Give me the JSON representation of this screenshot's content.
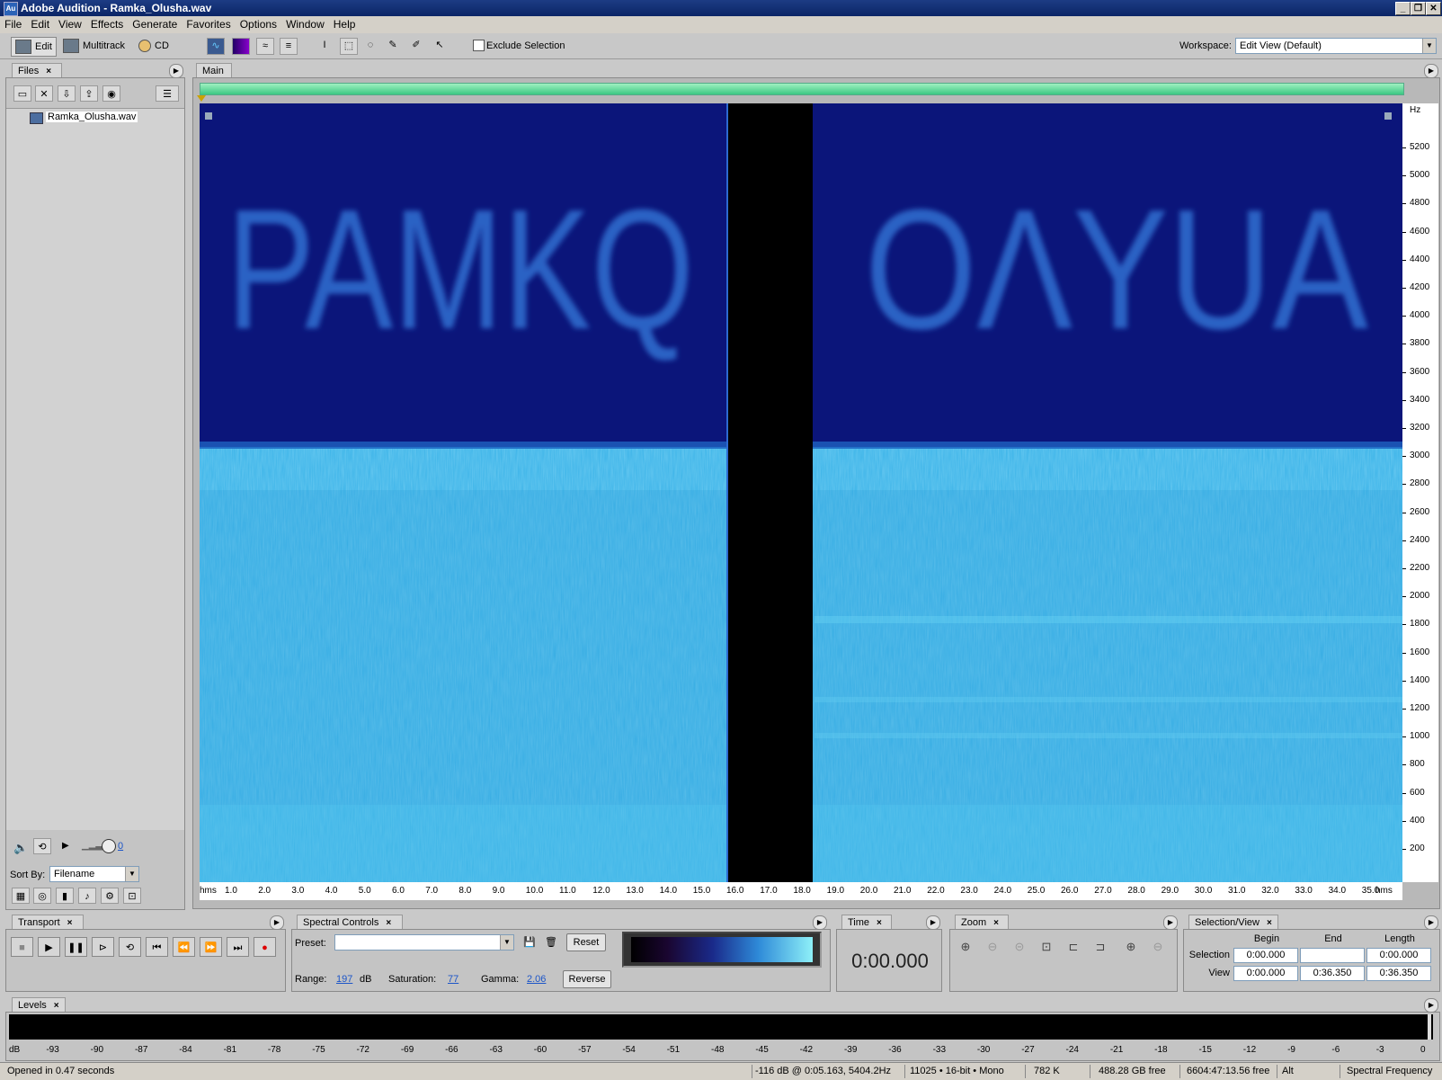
{
  "window": {
    "title": "Adobe Audition - Ramka_Olusha.wav",
    "icon_label": "Au"
  },
  "menu": [
    "File",
    "Edit",
    "View",
    "Effects",
    "Generate",
    "Favorites",
    "Options",
    "Window",
    "Help"
  ],
  "toolbar": {
    "edit_label": "Edit",
    "multitrack_label": "Multitrack",
    "cd_label": "CD",
    "exclude_selection_label": "Exclude Selection",
    "exclude_selection_checked": false,
    "workspace_label": "Workspace:",
    "workspace_value": "Edit View (Default)"
  },
  "files_panel": {
    "tab": "Files",
    "items": [
      "Ramka_Olusha.wav"
    ],
    "volume_value": "0",
    "sort_by_label": "Sort By:",
    "sort_by_value": "Filename"
  },
  "main_panel": {
    "tab": "Main",
    "hz_unit": "Hz",
    "hz_ticks": [
      "5200",
      "5000",
      "4800",
      "4600",
      "4400",
      "4200",
      "4000",
      "3800",
      "3600",
      "3400",
      "3200",
      "3000",
      "2800",
      "2600",
      "2400",
      "2200",
      "2000",
      "1800",
      "1600",
      "1400",
      "1200",
      "1000",
      "800",
      "600",
      "400",
      "200"
    ],
    "time_unit": "hms",
    "time_ticks": [
      "1.0",
      "2.0",
      "3.0",
      "4.0",
      "5.0",
      "6.0",
      "7.0",
      "8.0",
      "9.0",
      "10.0",
      "11.0",
      "12.0",
      "13.0",
      "14.0",
      "15.0",
      "16.0",
      "17.0",
      "18.0",
      "19.0",
      "20.0",
      "21.0",
      "22.0",
      "23.0",
      "24.0",
      "25.0",
      "26.0",
      "27.0",
      "28.0",
      "29.0",
      "30.0",
      "31.0",
      "32.0",
      "33.0",
      "34.0",
      "35.0"
    ],
    "spectrogram_text_left": "PAMKQ",
    "spectrogram_text_right": "OΛYUA"
  },
  "transport": {
    "tab": "Transport"
  },
  "spectral_controls": {
    "tab": "Spectral Controls",
    "preset_label": "Preset:",
    "preset_value": "",
    "reset_label": "Reset",
    "range_label": "Range:",
    "range_value": "197",
    "range_unit": "dB",
    "saturation_label": "Saturation:",
    "saturation_value": "77",
    "gamma_label": "Gamma:",
    "gamma_value": "2.06",
    "reverse_label": "Reverse"
  },
  "time_panel": {
    "tab": "Time",
    "value": "0:00.000"
  },
  "zoom_panel": {
    "tab": "Zoom"
  },
  "selection_view": {
    "tab": "Selection/View",
    "col_begin": "Begin",
    "col_end": "End",
    "col_length": "Length",
    "selection_label": "Selection",
    "view_label": "View",
    "selection_begin": "0:00.000",
    "selection_end": "",
    "selection_length": "0:00.000",
    "view_begin": "0:00.000",
    "view_end": "0:36.350",
    "view_length": "0:36.350"
  },
  "levels": {
    "tab": "Levels",
    "ticks": [
      "dB",
      "-93",
      "-90",
      "-87",
      "-84",
      "-81",
      "-78",
      "-75",
      "-72",
      "-69",
      "-66",
      "-63",
      "-60",
      "-57",
      "-54",
      "-51",
      "-48",
      "-45",
      "-42",
      "-39",
      "-36",
      "-33",
      "-30",
      "-27",
      "-24",
      "-21",
      "-18",
      "-15",
      "-12",
      "-9",
      "-6",
      "-3",
      "0"
    ]
  },
  "status": {
    "message": "Opened in 0.47 seconds",
    "cursor": "-116 dB @  0:05.163, 5404.2Hz",
    "format": "11025 • 16-bit • Mono",
    "size": "782 K",
    "free_space": "488.28 GB free",
    "free_time": "6604:47:13.56 free",
    "alt": "Alt",
    "view_mode": "Spectral Frequency"
  }
}
